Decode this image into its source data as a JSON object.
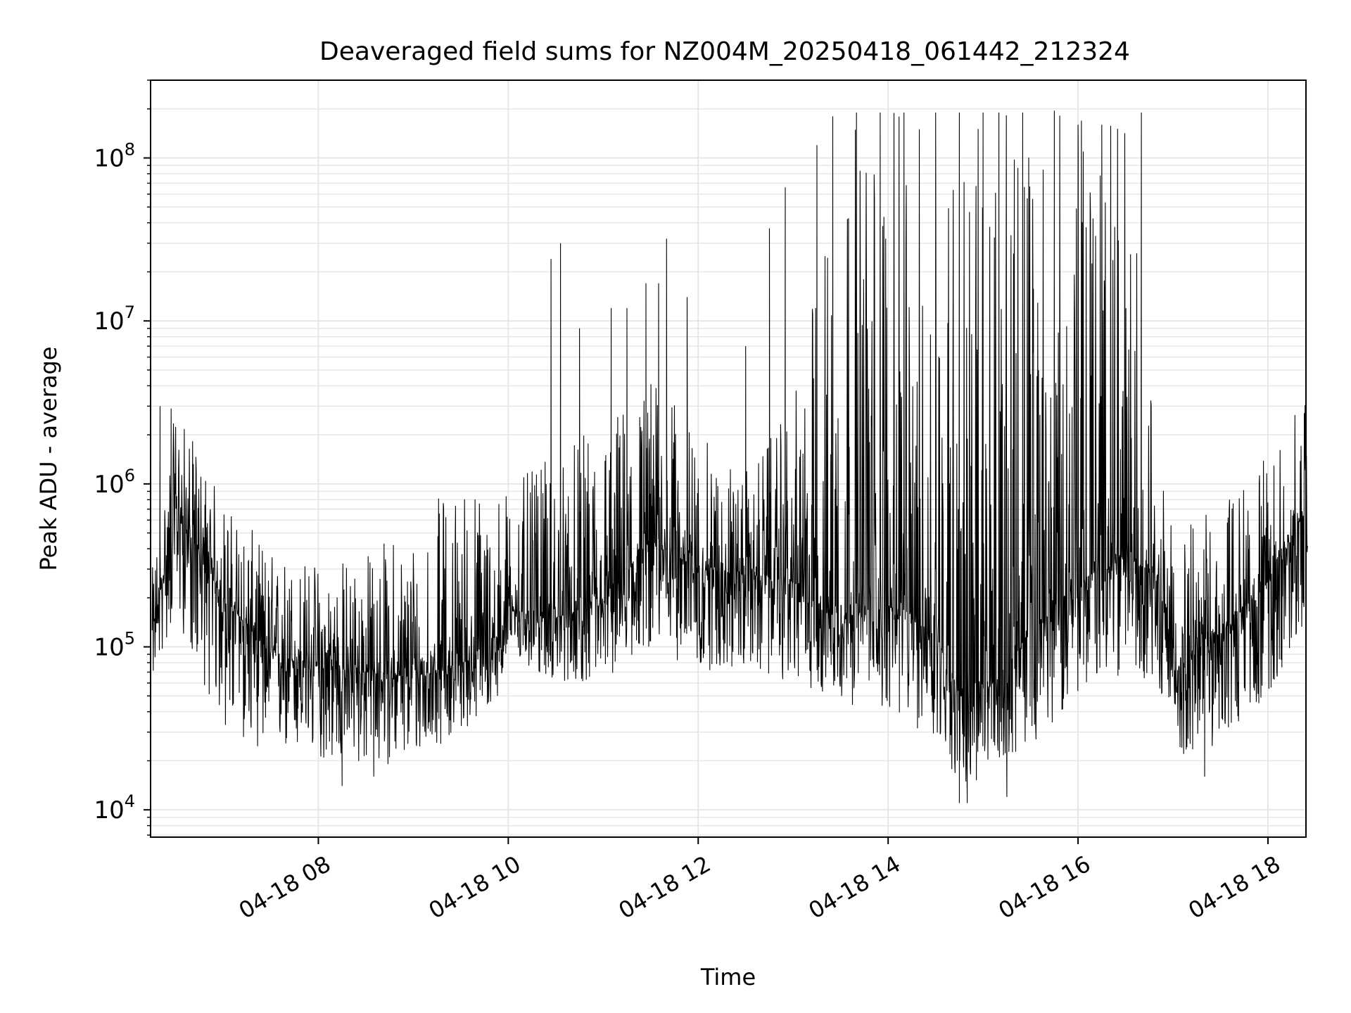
{
  "chart_data": {
    "type": "line",
    "title": "Deaveraged field sums for NZ004M_20250418_061442_212324",
    "xlabel": "Time",
    "ylabel": "Peak ADU - average",
    "x_range": [
      "2025-04-18 06:15",
      "2025-04-18 18:25"
    ],
    "xlim": [
      "2025-04-18 06:14",
      "2025-04-18 18:24"
    ],
    "yscale": "log",
    "ylim": [
      6800,
      300000000
    ],
    "x_ticks": [
      "04-18 08",
      "04-18 10",
      "04-18 12",
      "04-18 14",
      "04-18 16",
      "04-18 18"
    ],
    "x_tick_times": [
      "2025-04-18 08:00",
      "2025-04-18 10:00",
      "2025-04-18 12:00",
      "2025-04-18 14:00",
      "2025-04-18 16:00",
      "2025-04-18 18:00"
    ],
    "y_ticks": [
      {
        "base": "10",
        "exp": "4",
        "value": 10000
      },
      {
        "base": "10",
        "exp": "5",
        "value": 100000
      },
      {
        "base": "10",
        "exp": "6",
        "value": 1000000
      },
      {
        "base": "10",
        "exp": "7",
        "value": 10000000
      },
      {
        "base": "10",
        "exp": "8",
        "value": 100000000
      }
    ],
    "grid": true,
    "legend": "none",
    "line_color": "#000000",
    "grid_color": "#e5e5e5",
    "envelope": {
      "times": [
        "2025-04-18 06:15",
        "2025-04-18 06:30",
        "2025-04-18 07:00",
        "2025-04-18 07:30",
        "2025-04-18 08:00",
        "2025-04-18 08:30",
        "2025-04-18 09:00",
        "2025-04-18 09:30",
        "2025-04-18 09:50",
        "2025-04-18 10:00",
        "2025-04-18 10:30",
        "2025-04-18 11:00",
        "2025-04-18 11:30",
        "2025-04-18 12:00",
        "2025-04-18 12:30",
        "2025-04-18 13:00",
        "2025-04-18 13:30",
        "2025-04-18 14:00",
        "2025-04-18 14:30",
        "2025-04-18 14:50",
        "2025-04-18 15:00",
        "2025-04-18 15:30",
        "2025-04-18 16:00",
        "2025-04-18 16:30",
        "2025-04-18 16:50",
        "2025-04-18 17:00",
        "2025-04-18 17:30",
        "2025-04-18 18:00",
        "2025-04-18 18:24"
      ],
      "median": [
        120000,
        700000,
        200000,
        90000,
        75000,
        70000,
        65000,
        80000,
        90000,
        170000,
        150000,
        180000,
        450000,
        300000,
        280000,
        250000,
        150000,
        180000,
        120000,
        40000,
        50000,
        120000,
        250000,
        350000,
        280000,
        70000,
        120000,
        250000,
        700000
      ],
      "low": [
        60000,
        150000,
        30000,
        22000,
        20000,
        18000,
        20000,
        30000,
        40000,
        80000,
        60000,
        60000,
        100000,
        70000,
        70000,
        60000,
        45000,
        40000,
        25000,
        12000,
        15000,
        25000,
        50000,
        70000,
        60000,
        20000,
        25000,
        50000,
        130000
      ],
      "high": [
        300000,
        3000000,
        800000,
        400000,
        350000,
        400000,
        600000,
        1200000,
        1000000,
        1000000,
        1500000,
        2500000,
        5000000,
        2000000,
        1200000,
        3000000,
        180000000,
        190000000,
        190000000,
        180000000,
        190000000,
        190000000,
        190000000,
        190000000,
        1500000,
        500000,
        800000,
        1500000,
        3500000
      ]
    },
    "peaks": [
      {
        "time": "2025-04-18 06:20",
        "value": 3000000
      },
      {
        "time": "2025-04-18 06:27",
        "value": 2900000
      },
      {
        "time": "2025-04-18 10:27",
        "value": 24000000
      },
      {
        "time": "2025-04-18 10:33",
        "value": 30000000
      },
      {
        "time": "2025-04-18 10:45",
        "value": 9000000
      },
      {
        "time": "2025-04-18 11:05",
        "value": 12000000
      },
      {
        "time": "2025-04-18 11:15",
        "value": 12000000
      },
      {
        "time": "2025-04-18 11:27",
        "value": 17000000
      },
      {
        "time": "2025-04-18 11:35",
        "value": 17000000
      },
      {
        "time": "2025-04-18 11:40",
        "value": 32000000
      },
      {
        "time": "2025-04-18 11:53",
        "value": 14000000
      },
      {
        "time": "2025-04-18 12:30",
        "value": 7000000
      },
      {
        "time": "2025-04-18 12:45",
        "value": 37000000
      },
      {
        "time": "2025-04-18 12:55",
        "value": 66000000
      },
      {
        "time": "2025-04-18 13:15",
        "value": 120000000
      },
      {
        "time": "2025-04-18 13:25",
        "value": 180000000
      },
      {
        "time": "2025-04-18 13:40",
        "value": 190000000
      },
      {
        "time": "2025-04-18 13:55",
        "value": 190000000
      },
      {
        "time": "2025-04-18 14:10",
        "value": 190000000
      },
      {
        "time": "2025-04-18 14:30",
        "value": 190000000
      },
      {
        "time": "2025-04-18 14:45",
        "value": 190000000
      },
      {
        "time": "2025-04-18 15:00",
        "value": 190000000
      },
      {
        "time": "2025-04-18 15:10",
        "value": 190000000
      },
      {
        "time": "2025-04-18 15:25",
        "value": 190000000
      },
      {
        "time": "2025-04-18 15:45",
        "value": 195000000
      },
      {
        "time": "2025-04-18 16:00",
        "value": 160000000
      },
      {
        "time": "2025-04-18 16:15",
        "value": 160000000
      },
      {
        "time": "2025-04-18 16:25",
        "value": 140000000
      },
      {
        "time": "2025-04-18 16:40",
        "value": 190000000
      }
    ],
    "troughs": [
      {
        "time": "2025-04-18 08:15",
        "value": 14000
      },
      {
        "time": "2025-04-18 08:35",
        "value": 16000
      },
      {
        "time": "2025-04-18 14:45",
        "value": 11000
      },
      {
        "time": "2025-04-18 14:50",
        "value": 11000
      },
      {
        "time": "2025-04-18 15:15",
        "value": 12000
      },
      {
        "time": "2025-04-18 17:20",
        "value": 16000
      }
    ]
  }
}
